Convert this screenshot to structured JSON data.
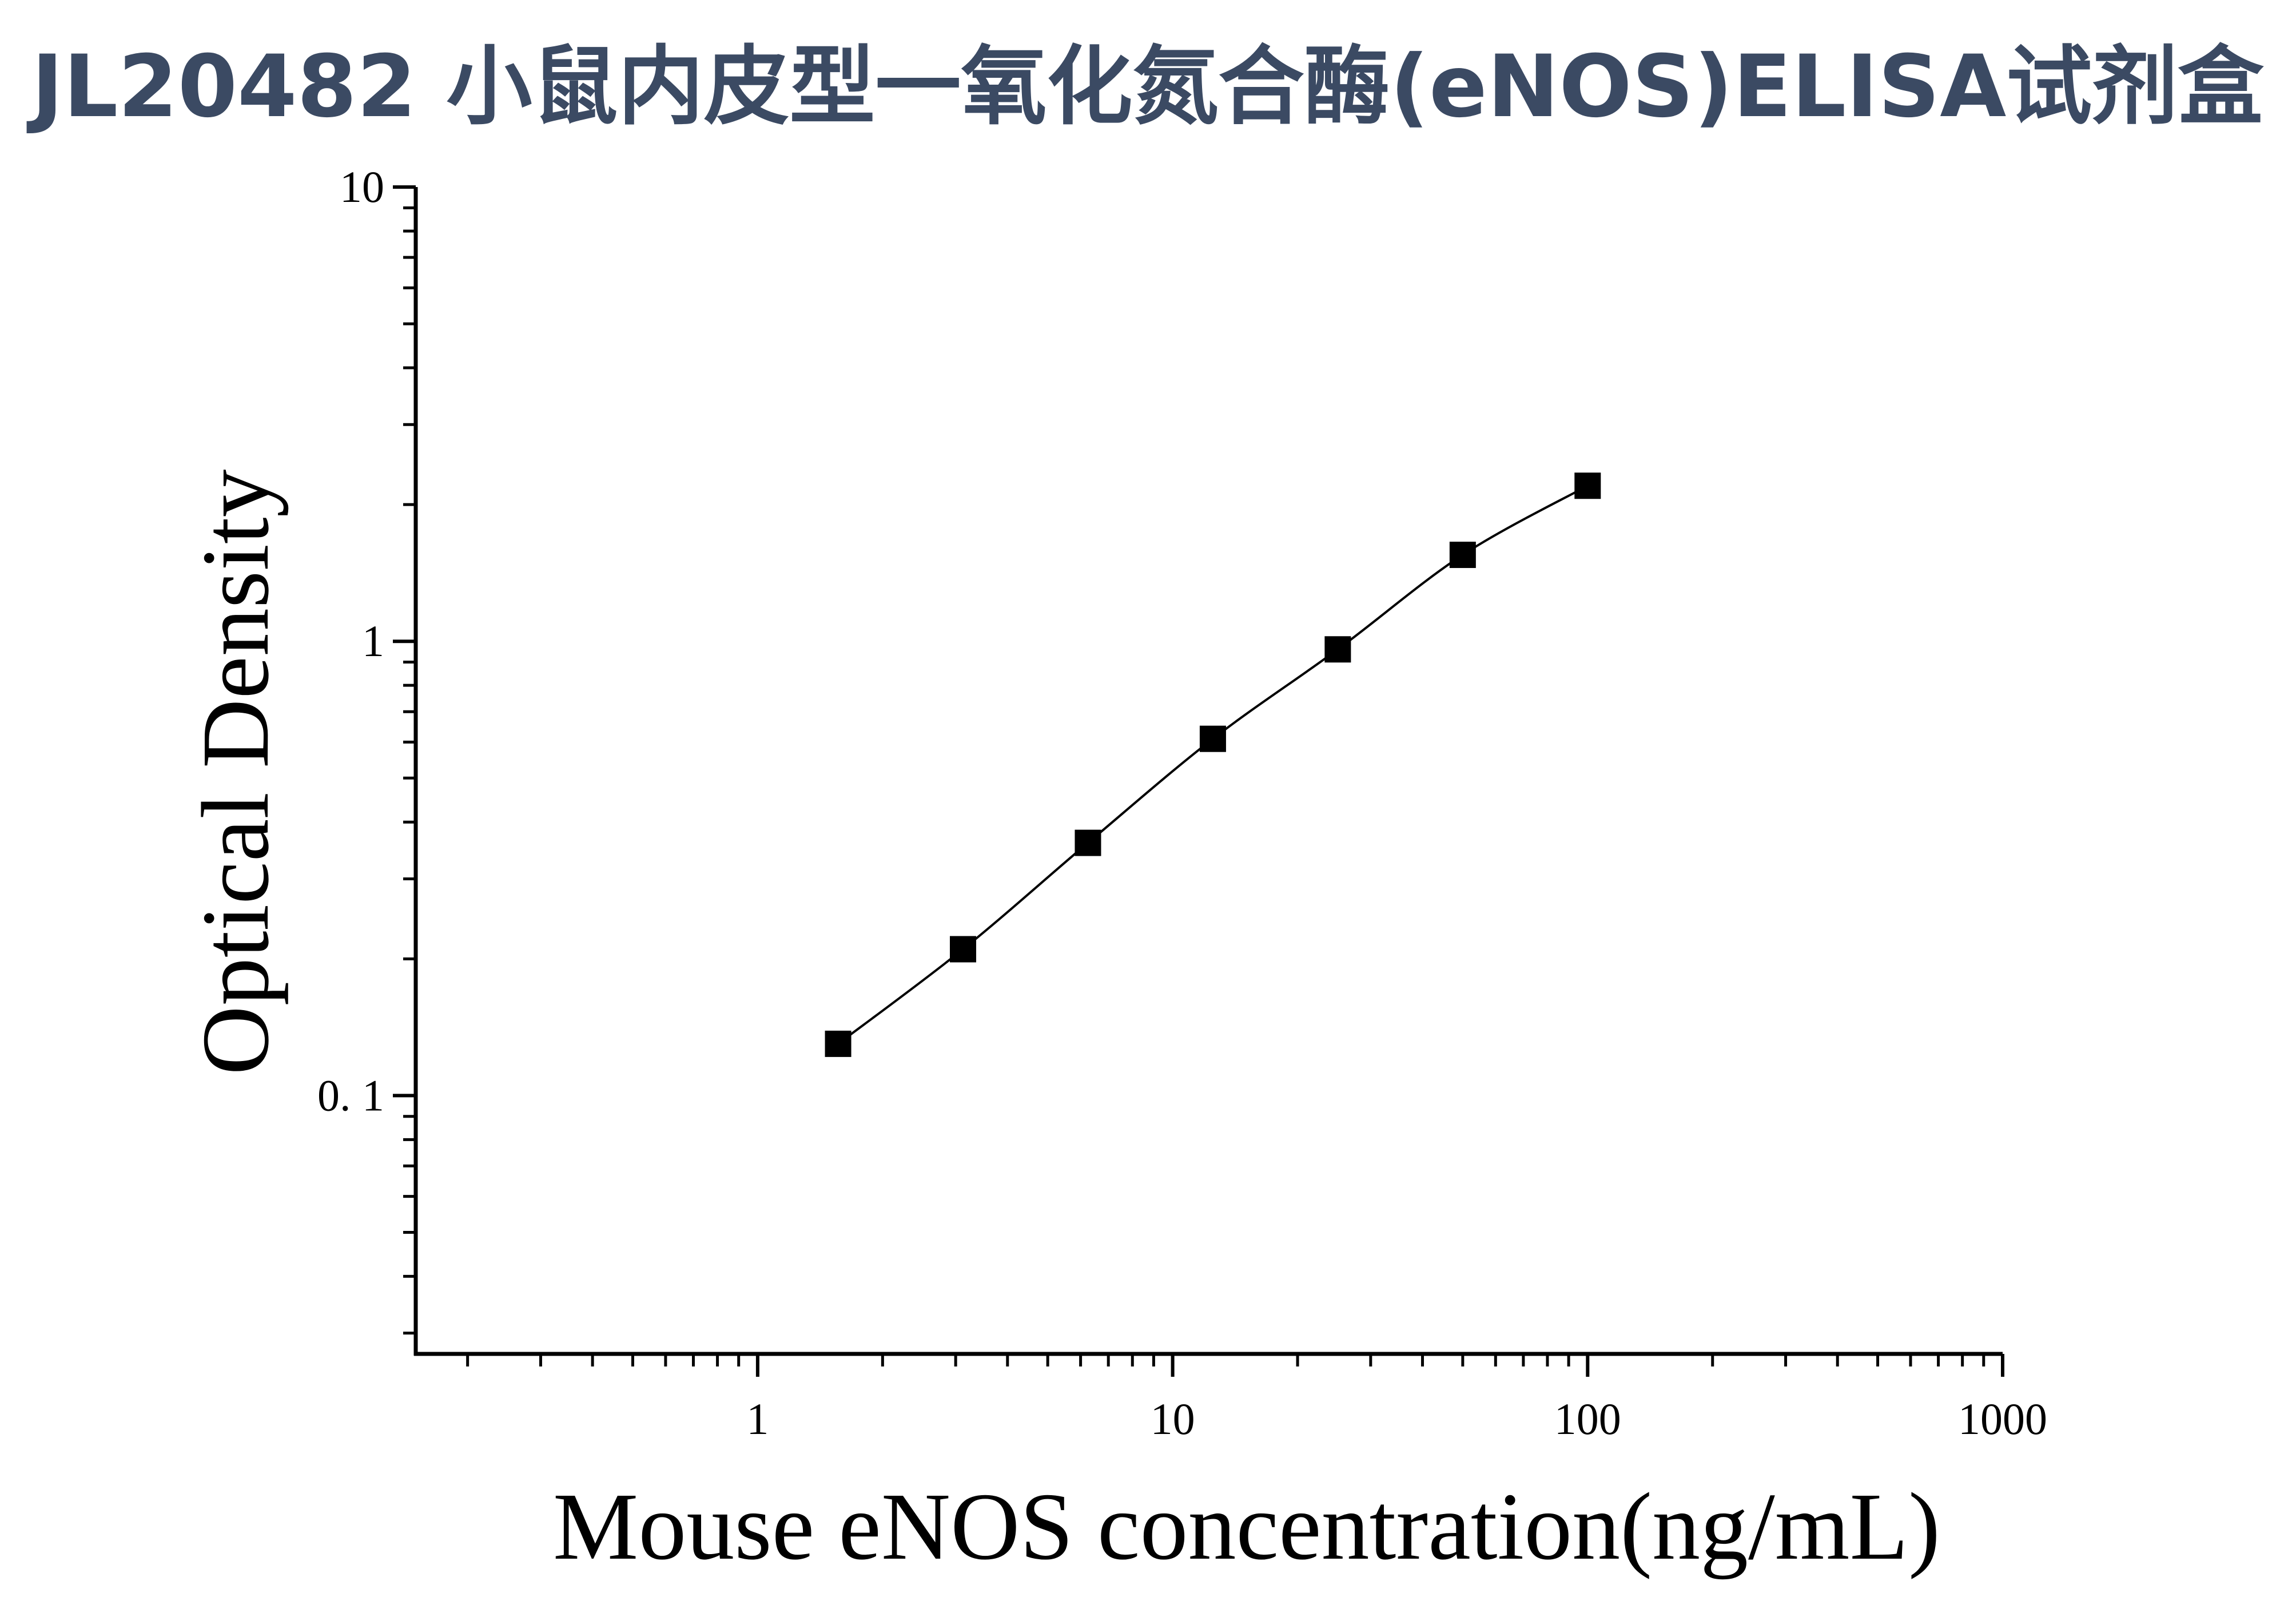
{
  "title": "JL20482 小鼠内皮型一氧化氮合酶(eNOS)ELISA试剂盒",
  "colors": {
    "title": "#3b4a63",
    "ink": "#000000"
  },
  "chart_data": {
    "type": "scatter",
    "xlabel": "Mouse eNOS concentration(ng/mL)",
    "ylabel": "Optical Density",
    "xscale": "log",
    "yscale": "log",
    "xlim": [
      0.15,
      1000
    ],
    "ylim": [
      0.027,
      10
    ],
    "x_ticks": [
      {
        "value": 1,
        "label": "1"
      },
      {
        "value": 10,
        "label": "10"
      },
      {
        "value": 100,
        "label": "100"
      },
      {
        "value": 1000,
        "label": "1000"
      }
    ],
    "y_ticks": [
      {
        "value": 0.1,
        "label": "0. 1"
      },
      {
        "value": 1,
        "label": "1"
      },
      {
        "value": 10,
        "label": "10"
      }
    ],
    "grid": false,
    "legend": "none",
    "fitted_curve": true,
    "series": [
      {
        "marker": "square",
        "x": [
          1.5625,
          3.125,
          6.25,
          12.5,
          25,
          50,
          100
        ],
        "y": [
          0.13,
          0.21,
          0.36,
          0.61,
          0.96,
          1.55,
          2.2
        ]
      }
    ]
  }
}
